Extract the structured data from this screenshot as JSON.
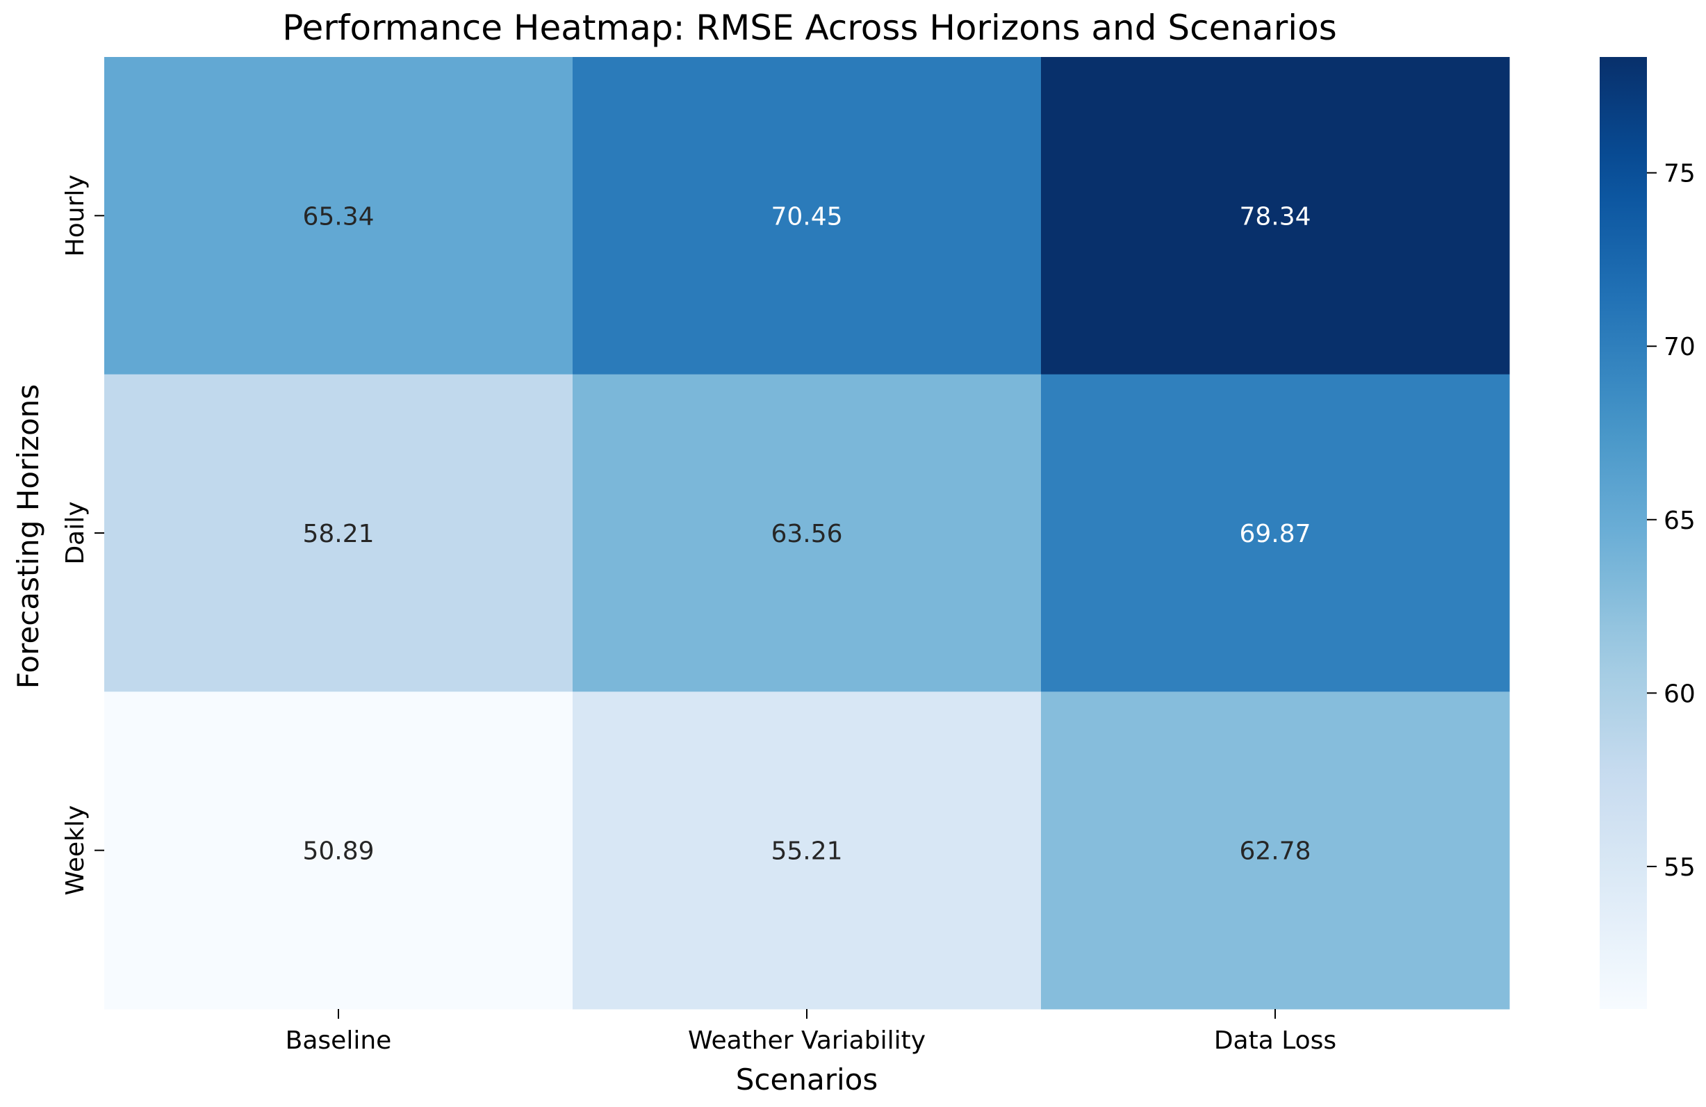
{
  "chart_data": {
    "type": "heatmap",
    "title": "Performance Heatmap: RMSE Across Horizons and Scenarios",
    "xlabel": "Scenarios",
    "ylabel": "Forecasting Horizons",
    "x_categories": [
      "Baseline",
      "Weather Variability",
      "Data Loss"
    ],
    "y_categories": [
      "Hourly",
      "Daily",
      "Weekly"
    ],
    "values": [
      [
        65.34,
        70.45,
        78.34
      ],
      [
        58.21,
        63.56,
        69.87
      ],
      [
        50.89,
        55.21,
        62.78
      ]
    ],
    "value_labels": [
      [
        "65.34",
        "70.45",
        "78.34"
      ],
      [
        "58.21",
        "63.56",
        "69.87"
      ],
      [
        "50.89",
        "55.21",
        "62.78"
      ]
    ],
    "colormap": "Blues",
    "color_range": [
      50.89,
      78.34
    ],
    "colorbar": {
      "ticks": [
        55,
        60,
        65,
        70,
        75
      ],
      "tick_labels": [
        "55",
        "60",
        "65",
        "70",
        "75"
      ]
    },
    "grid": false
  }
}
